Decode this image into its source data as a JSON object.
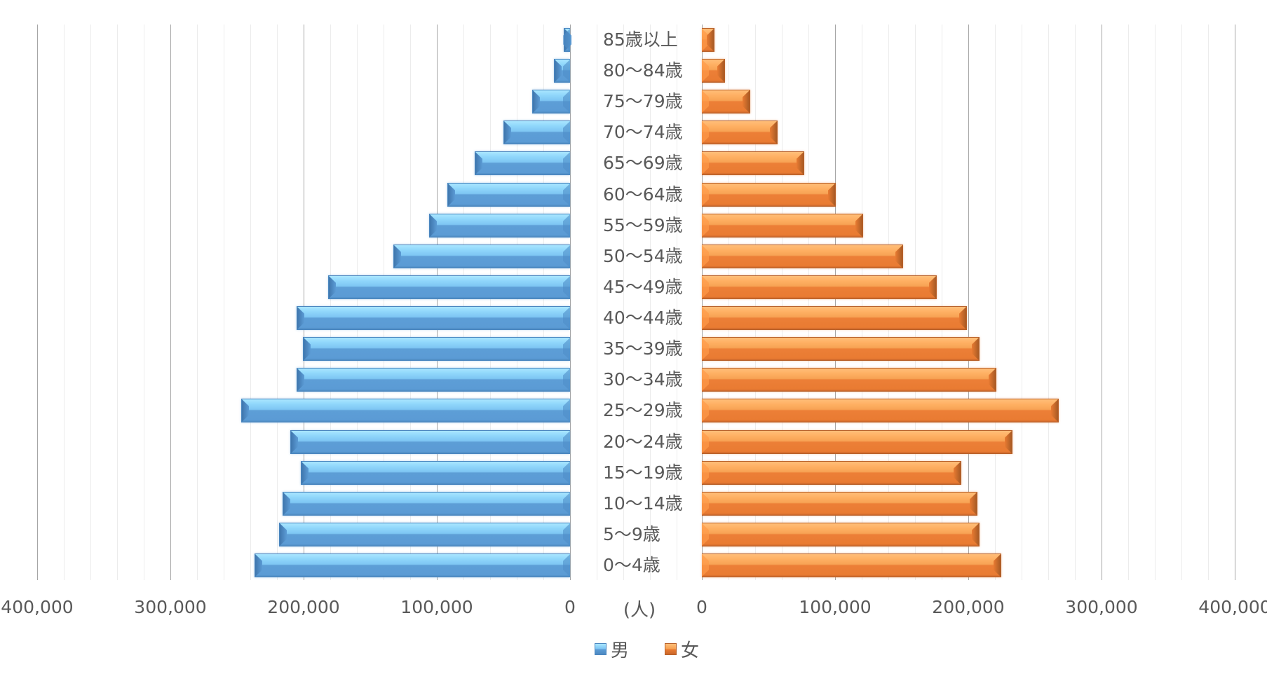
{
  "chart_data": {
    "type": "bar",
    "orientation": "horizontal",
    "subtype": "population-pyramid",
    "title": "",
    "xlabel": "(人)",
    "ylabel": "",
    "categories": [
      "85歳以上",
      "80～84歳",
      "75～79歳",
      "70～74歳",
      "65～69歳",
      "60～64歳",
      "55～59歳",
      "50～54歳",
      "45～49歳",
      "40～44歳",
      "35～39歳",
      "30～34歳",
      "25～29歳",
      "20～24歳",
      "15～19歳",
      "10～14歳",
      "5～9歳",
      "0～4歳"
    ],
    "series": [
      {
        "name": "男",
        "color": "#5b9bd5",
        "values": [
          4500,
          12300,
          28500,
          50000,
          71800,
          92200,
          105600,
          132400,
          181800,
          205300,
          200300,
          205300,
          246900,
          209800,
          202000,
          215900,
          218200,
          236600
        ]
      },
      {
        "name": "女",
        "color": "#ed7d31",
        "values": [
          9600,
          17600,
          36300,
          56600,
          76900,
          100300,
          121200,
          151100,
          176400,
          199200,
          208200,
          221200,
          267900,
          233200,
          194800,
          207100,
          208200,
          224700
        ]
      }
    ],
    "xlim": [
      0,
      400000
    ],
    "left_axis_ticks": [
      "400,000",
      "300,000",
      "200,000",
      "100,000",
      "0"
    ],
    "right_axis_ticks": [
      "0",
      "100,000",
      "200,000",
      "300,000",
      "400,000"
    ],
    "grid": true,
    "legend_position": "bottom"
  },
  "axis": {
    "unit_label": "(人)",
    "left_ticks": [
      {
        "label": "400,000",
        "value": 400000
      },
      {
        "label": "300,000",
        "value": 300000
      },
      {
        "label": "200,000",
        "value": 200000
      },
      {
        "label": "100,000",
        "value": 100000
      },
      {
        "label": "0",
        "value": 0
      }
    ],
    "right_ticks": [
      {
        "label": "0",
        "value": 0
      },
      {
        "label": "100,000",
        "value": 100000
      },
      {
        "label": "200,000",
        "value": 200000
      },
      {
        "label": "300,000",
        "value": 300000
      },
      {
        "label": "400,000",
        "value": 400000
      }
    ]
  },
  "legend": {
    "items": [
      {
        "label": "男",
        "color": "#5b9bd5"
      },
      {
        "label": "女",
        "color": "#ed7d31"
      }
    ]
  }
}
